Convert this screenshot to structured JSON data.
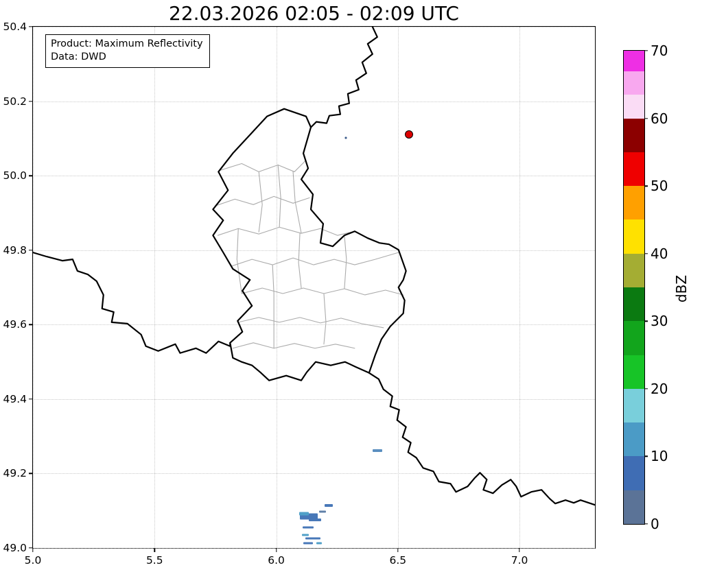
{
  "title": "22.03.2026 02:05 - 02:09 UTC",
  "info_box": {
    "product": "Product: Maximum Reflectivity",
    "source": "Data: DWD"
  },
  "axes": {
    "x": {
      "min": 5.0,
      "max": 7.31,
      "ticks": [
        5.0,
        5.5,
        6.0,
        6.5,
        7.0
      ],
      "tick_labels": [
        "5.0",
        "5.5",
        "6.0",
        "6.5",
        "7.0"
      ]
    },
    "y": {
      "min": 49.0,
      "max": 50.4,
      "ticks": [
        49.0,
        49.2,
        49.4,
        49.6,
        49.8,
        50.0,
        50.2,
        50.4
      ],
      "tick_labels": [
        "49.0",
        "49.2",
        "49.4",
        "49.6",
        "49.8",
        "50.0",
        "50.2",
        "50.4"
      ]
    }
  },
  "colorbar": {
    "label": "dBZ",
    "min": 0,
    "max": 70,
    "ticks": [
      0,
      10,
      20,
      30,
      40,
      50,
      60,
      70
    ],
    "segments": [
      {
        "from": 0,
        "to": 5,
        "color": "#5b7397"
      },
      {
        "from": 5,
        "to": 10,
        "color": "#3f6db4"
      },
      {
        "from": 10,
        "to": 15,
        "color": "#4b9bc6"
      },
      {
        "from": 15,
        "to": 20,
        "color": "#79cfdb"
      },
      {
        "from": 20,
        "to": 25,
        "color": "#17c427"
      },
      {
        "from": 25,
        "to": 30,
        "color": "#12a51c"
      },
      {
        "from": 30,
        "to": 35,
        "color": "#0b7a11"
      },
      {
        "from": 35,
        "to": 40,
        "color": "#a4ad33"
      },
      {
        "from": 40,
        "to": 45,
        "color": "#ffe100"
      },
      {
        "from": 45,
        "to": 50,
        "color": "#ffa000"
      },
      {
        "from": 50,
        "to": 55,
        "color": "#ef0000"
      },
      {
        "from": 55,
        "to": 60,
        "color": "#8c0000"
      },
      {
        "from": 60,
        "to": 63.5,
        "color": "#fadcf5"
      },
      {
        "from": 63.5,
        "to": 67,
        "color": "#f8a8ef"
      },
      {
        "from": 67,
        "to": 70,
        "color": "#ee2fe4"
      }
    ]
  },
  "radar_station": {
    "lon": 6.545,
    "lat": 50.11,
    "color": "#dd0000"
  },
  "echoes": [
    {
      "lon": 6.215,
      "lat": 49.115,
      "w": 12,
      "h": 4,
      "color": "#4878b8"
    },
    {
      "lon": 6.135,
      "lat": 49.085,
      "w": 26,
      "h": 9,
      "color": "#4878b8"
    },
    {
      "lon": 6.115,
      "lat": 49.092,
      "w": 14,
      "h": 5,
      "color": "#50a0c8"
    },
    {
      "lon": 6.16,
      "lat": 49.075,
      "w": 18,
      "h": 4,
      "color": "#4878b8"
    },
    {
      "lon": 6.19,
      "lat": 49.098,
      "w": 10,
      "h": 3,
      "color": "#6080a8"
    },
    {
      "lon": 6.13,
      "lat": 49.055,
      "w": 16,
      "h": 3,
      "color": "#4878b8"
    },
    {
      "lon": 6.12,
      "lat": 49.035,
      "w": 10,
      "h": 3,
      "color": "#50a0c8"
    },
    {
      "lon": 6.15,
      "lat": 49.025,
      "w": 22,
      "h": 3,
      "color": "#4878b8"
    },
    {
      "lon": 6.13,
      "lat": 49.013,
      "w": 14,
      "h": 3,
      "color": "#4878b8"
    },
    {
      "lon": 6.175,
      "lat": 49.012,
      "w": 8,
      "h": 3,
      "color": "#50a0c8"
    },
    {
      "lon": 6.415,
      "lat": 49.262,
      "w": 14,
      "h": 4,
      "color": "#5b8fc0"
    },
    {
      "lon": 6.287,
      "lat": 50.102,
      "w": 3,
      "h": 3,
      "color": "#3a5a8a"
    }
  ],
  "map": {
    "country_border_color": "#000000",
    "district_border_color": "#ababab",
    "grid_color": "#c9c9c9",
    "background": "#ffffff"
  }
}
